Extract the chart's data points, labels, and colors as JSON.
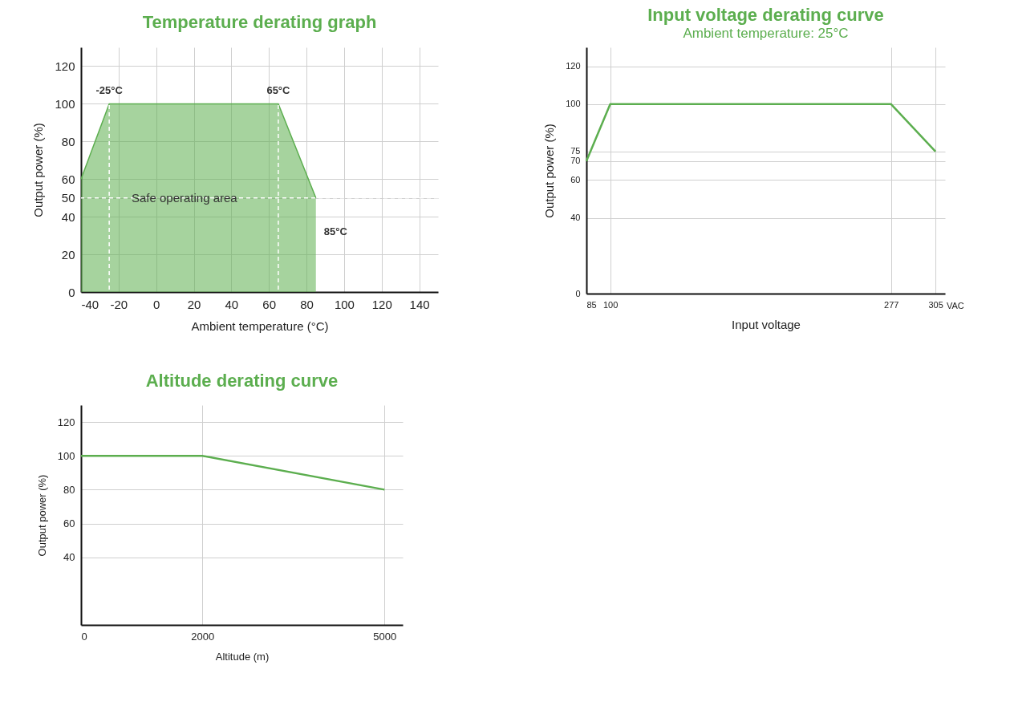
{
  "chart_data": [
    {
      "type": "area",
      "title": "Temperature derating graph",
      "xlabel": "Ambient temperature (°C)",
      "ylabel": "Output power (%)",
      "x": [
        -40,
        -25,
        65,
        85
      ],
      "series": [
        {
          "color": "#5cae4f",
          "values": [
            60,
            100,
            100,
            50
          ]
        }
      ],
      "xlim": [
        -40,
        150
      ],
      "ylim": [
        0,
        130
      ],
      "xticks": [
        -40,
        -20,
        0,
        20,
        40,
        60,
        80,
        100,
        120,
        140
      ],
      "yticks": [
        0,
        20,
        40,
        50,
        60,
        80,
        100,
        120
      ],
      "grid": true,
      "ref_lines": [
        {
          "axis": "x",
          "value": -25,
          "color": "#ffffff",
          "line_style": "dashed"
        },
        {
          "axis": "x",
          "value": 65,
          "color": "#ffffff",
          "line_style": "dashed"
        },
        {
          "axis": "y",
          "value": 50,
          "color": "#ffffff",
          "line_style": "dashed"
        }
      ],
      "annotations": [
        {
          "text": "-25°C",
          "x": -25,
          "y": 107
        },
        {
          "text": "65°C",
          "x": 65,
          "y": 107
        },
        {
          "text": "85°C",
          "x": 85,
          "y": 32
        },
        {
          "text": "Safe operating area",
          "x": 15,
          "y": 50
        }
      ]
    },
    {
      "type": "line",
      "title": "Input voltage derating curve",
      "subtitle": "Ambient temperature: 25°C",
      "xlabel": "Input voltage",
      "ylabel": "Output power (%)",
      "x": [
        85,
        100,
        277,
        305
      ],
      "series": [
        {
          "color": "#5cae4f",
          "values": [
            70,
            100,
            100,
            75
          ]
        }
      ],
      "xlim": [
        85,
        311
      ],
      "ylim": [
        0,
        130
      ],
      "xticks": [
        85,
        100,
        277,
        305
      ],
      "yticks": [
        0,
        40,
        60,
        70,
        75,
        100,
        120
      ],
      "grid": true,
      "annotations": [
        "VAC"
      ]
    },
    {
      "type": "line",
      "title": "Altitude derating curve",
      "xlabel": "Altitude (m)",
      "ylabel": "Output power (%)",
      "x": [
        0,
        2000,
        5000
      ],
      "series": [
        {
          "color": "#5cae4f",
          "values": [
            100,
            100,
            80
          ]
        }
      ],
      "xlim": [
        0,
        5300
      ],
      "ylim": [
        0,
        130
      ],
      "xticks": [
        0,
        2000,
        5000
      ],
      "yticks": [
        40,
        60,
        80,
        100,
        120
      ],
      "grid": true
    }
  ]
}
